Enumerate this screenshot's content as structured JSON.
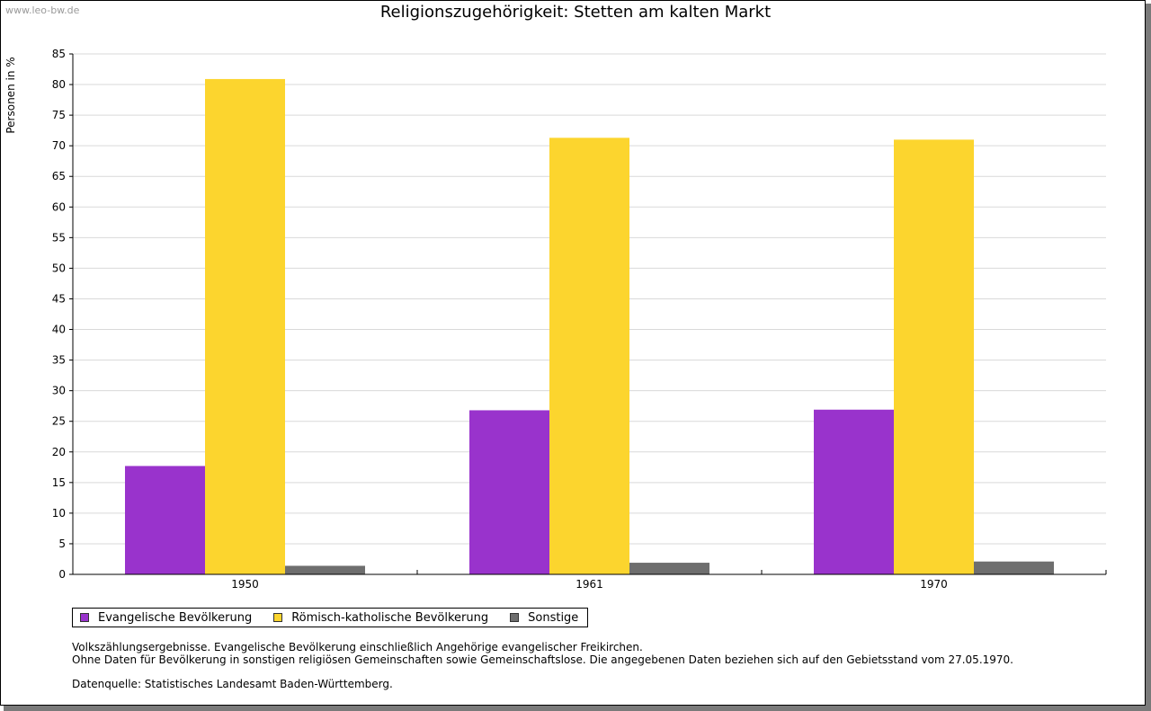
{
  "watermark": "www.leo-bw.de",
  "colors": {
    "evangelisch": "#9933CC",
    "katholisch": "#FCD52E",
    "sonstige": "#6E6E6E"
  },
  "chart_data": {
    "type": "bar",
    "title": "Religionszugehörigkeit: Stetten am kalten Markt",
    "xlabel": "",
    "ylabel": "Personen in %",
    "ylim": [
      0,
      85
    ],
    "yticks": [
      0,
      5,
      10,
      15,
      20,
      25,
      30,
      35,
      40,
      45,
      50,
      55,
      60,
      65,
      70,
      75,
      80,
      85
    ],
    "grid": true,
    "legend_position": "bottom-left",
    "categories": [
      "1950",
      "1961",
      "1970"
    ],
    "series": [
      {
        "name": "Evangelische Bevölkerung",
        "color": "#9933CC",
        "values": [
          17.7,
          26.8,
          26.9
        ]
      },
      {
        "name": "Römisch-katholische Bevölkerung",
        "color": "#FCD52E",
        "values": [
          80.9,
          71.3,
          71.0
        ]
      },
      {
        "name": "Sonstige",
        "color": "#6E6E6E",
        "values": [
          1.4,
          1.9,
          2.1
        ]
      }
    ]
  },
  "notes": {
    "line1": "Volkszählungsergebnisse. Evangelische Bevölkerung einschließlich Angehörige evangelischer Freikirchen.",
    "line2": "Ohne Daten für Bevölkerung in sonstigen religiösen Gemeinschaften sowie Gemeinschaftslose. Die angegebenen Daten beziehen sich auf den Gebietsstand vom 27.05.1970.",
    "source": "Datenquelle: Statistisches Landesamt Baden-Württemberg."
  }
}
